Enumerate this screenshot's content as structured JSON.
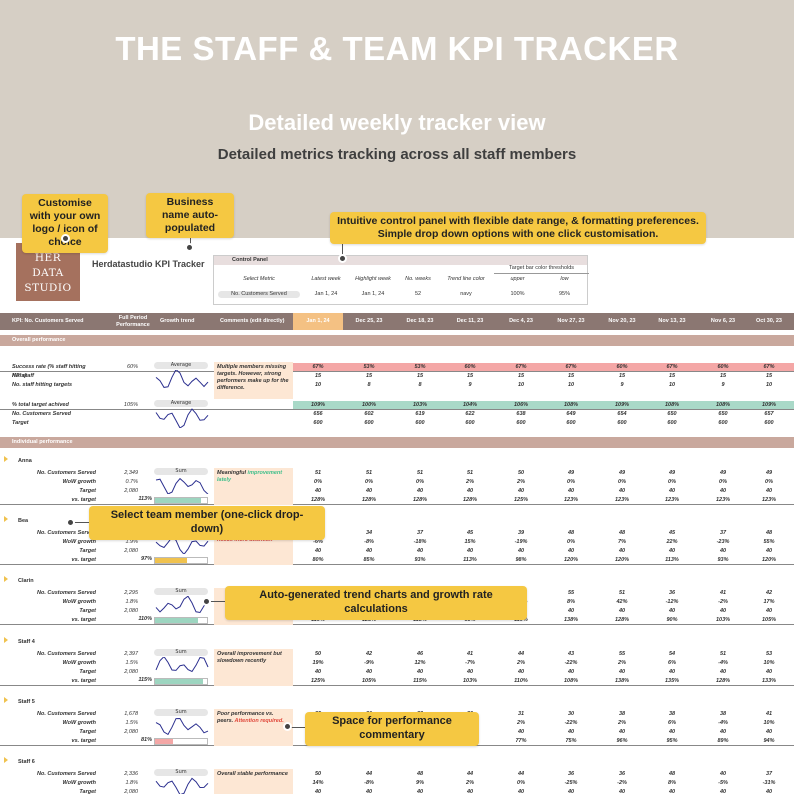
{
  "hero": {
    "title": "THE STAFF & TEAM KPI TRACKER",
    "subtitle": "Detailed weekly tracker view",
    "subtitle2": "Detailed metrics tracking across all staff members"
  },
  "callouts": {
    "logo": "Customise with your own logo / icon of choice",
    "business": "Business name auto-populated",
    "control": "Intuitive control panel with flexible date range, & formatting preferences. Simple drop down options with one click customisation.",
    "member": "Select team member (one-click drop-down)",
    "trend": "Auto-generated trend charts and growth rate calculations",
    "commentary": "Space for performance commentary"
  },
  "logo": {
    "line1": "HER",
    "line2": "DATA",
    "line3": "STUDIO"
  },
  "business_name": "Herdatastudio KPI Tracker",
  "control_panel": {
    "title": "Control Panel",
    "group_header": "Target bar color thresholds",
    "headers": [
      "Select Metric",
      "Latest week",
      "Highlight week",
      "No. weeks",
      "Trend line color",
      "upper",
      "low"
    ],
    "values": [
      "No. Customers Served",
      "Jan 1, 24",
      "Jan 1, 24",
      "52",
      "navy",
      "100%",
      "95%"
    ]
  },
  "header": {
    "kpi": "KPI: No. Customers Served",
    "full_period": "Full Period Performance",
    "growth": "Growth trend",
    "comments": "Comments (edit directly)",
    "dates": [
      "Jan 1, 24",
      "Dec 25, 23",
      "Dec 18, 23",
      "Dec 11, 23",
      "Dec 4, 23",
      "Nov 27, 23",
      "Nov 20, 23",
      "Nov 13, 23",
      "Nov 6, 23",
      "Oct 30, 23"
    ]
  },
  "overall": {
    "band": "Overall performance",
    "rows": [
      {
        "label": "Success rate (% staff hitting KPIs)",
        "full": "60%",
        "cells": [
          "67%",
          "53%",
          "53%",
          "60%",
          "67%",
          "67%",
          "60%",
          "67%",
          "60%",
          "67%"
        ]
      },
      {
        "label": "No. staff",
        "full": "",
        "cells": [
          "15",
          "15",
          "15",
          "15",
          "15",
          "15",
          "15",
          "15",
          "15",
          "15"
        ]
      },
      {
        "label": "No. staff hitting targets",
        "full": "",
        "cells": [
          "10",
          "8",
          "8",
          "9",
          "10",
          "10",
          "9",
          "10",
          "9",
          "10"
        ]
      },
      {
        "label": "% total target achived",
        "full": "105%",
        "cells": [
          "109%",
          "100%",
          "103%",
          "104%",
          "106%",
          "108%",
          "109%",
          "108%",
          "108%",
          "109%"
        ]
      },
      {
        "label": "No. Customers Served",
        "full": "",
        "cells": [
          "656",
          "602",
          "619",
          "622",
          "638",
          "649",
          "654",
          "650",
          "650",
          "657"
        ]
      },
      {
        "label": "Target",
        "full": "",
        "cells": [
          "600",
          "600",
          "600",
          "600",
          "600",
          "600",
          "600",
          "600",
          "600",
          "600"
        ]
      }
    ],
    "trend_label_1": "Average",
    "trend_label_2": "Average",
    "comment": "Multiple members missing targets. However, strong performers make up for the difference."
  },
  "individual": {
    "band": "Individual performance",
    "metric_labels": [
      "No. Customers Served",
      "WoW growth",
      "Target",
      "vs. target"
    ],
    "trend_label": "Sum",
    "members": [
      {
        "name": "Anna",
        "full": [
          "2,349",
          "0.7%",
          "2,080",
          "113%"
        ],
        "vs_color": "#9dd5c0",
        "comment_a": "Meaningful",
        "comment_b": " improvement lately",
        "comment_b_color": "g",
        "rows": [
          [
            "51",
            "51",
            "51",
            "51",
            "50",
            "49",
            "49",
            "49",
            "49",
            "49"
          ],
          [
            "0%",
            "0%",
            "0%",
            "2%",
            "2%",
            "0%",
            "0%",
            "0%",
            "0%",
            "0%"
          ],
          [
            "40",
            "40",
            "40",
            "40",
            "40",
            "40",
            "40",
            "40",
            "40",
            "40"
          ],
          [
            "128%",
            "128%",
            "128%",
            "128%",
            "125%",
            "123%",
            "123%",
            "123%",
            "123%",
            "123%"
          ]
        ]
      },
      {
        "name": "Bea",
        "full": [
          "2,012",
          "1.9%",
          "2,080",
          "97%"
        ],
        "vs_color": "#f0c24e",
        "comment_a": "Improvement but",
        "comment_b": " still needs more attention",
        "comment_b_color": "r",
        "rows": [
          [
            "32",
            "34",
            "37",
            "45",
            "39",
            "48",
            "48",
            "45",
            "37",
            "48"
          ],
          [
            "-6%",
            "-8%",
            "-18%",
            "15%",
            "-19%",
            "0%",
            "7%",
            "22%",
            "-23%",
            "55%"
          ],
          [
            "40",
            "40",
            "40",
            "40",
            "40",
            "40",
            "40",
            "40",
            "40",
            "40"
          ],
          [
            "80%",
            "85%",
            "93%",
            "113%",
            "98%",
            "120%",
            "120%",
            "113%",
            "93%",
            "120%"
          ]
        ]
      },
      {
        "name": "Clarin",
        "full": [
          "2,295",
          "1.8%",
          "2,080",
          "110%"
        ],
        "vs_color": "#9dd5c0",
        "comment_a": "",
        "comment_b": "",
        "comment_b_color": "g",
        "rows": [
          [
            "44",
            "49",
            "47",
            "39",
            "44",
            "55",
            "51",
            "36",
            "41",
            "42"
          ],
          [
            "-10%",
            "4%",
            "21%",
            "-11%",
            "-20%",
            "8%",
            "42%",
            "-12%",
            "-2%",
            "17%"
          ],
          [
            "40",
            "40",
            "40",
            "40",
            "40",
            "40",
            "40",
            "40",
            "40",
            "40"
          ],
          [
            "110%",
            "123%",
            "118%",
            "98%",
            "110%",
            "138%",
            "128%",
            "90%",
            "103%",
            "105%"
          ]
        ]
      },
      {
        "name": "Staff 4",
        "full": [
          "2,397",
          "1.5%",
          "2,080",
          "115%"
        ],
        "vs_color": "#9dd5c0",
        "comment_a": "Overall improvement but slowdown recently",
        "comment_b": "",
        "comment_b_color": "g",
        "rows": [
          [
            "50",
            "42",
            "46",
            "41",
            "44",
            "43",
            "55",
            "54",
            "51",
            "53"
          ],
          [
            "19%",
            "-9%",
            "12%",
            "-7%",
            "2%",
            "-22%",
            "2%",
            "6%",
            "-4%",
            "10%"
          ],
          [
            "40",
            "40",
            "40",
            "40",
            "40",
            "40",
            "40",
            "40",
            "40",
            "40"
          ],
          [
            "125%",
            "105%",
            "115%",
            "103%",
            "110%",
            "108%",
            "138%",
            "135%",
            "128%",
            "133%"
          ]
        ]
      },
      {
        "name": "Staff 5",
        "full": [
          "1,678",
          "1.5%",
          "2,080",
          "81%"
        ],
        "vs_color": "#f4a7a6",
        "comment_a": "Poor performance vs. peers.",
        "comment_b": " Attention required.",
        "comment_b_color": "r",
        "rows": [
          [
            "35",
            "30",
            "32",
            "29",
            "31",
            "30",
            "38",
            "38",
            "38",
            "41"
          ],
          [
            "19%",
            "-9%",
            "12%",
            "-7%",
            "2%",
            "-22%",
            "2%",
            "6%",
            "-4%",
            "10%"
          ],
          [
            "40",
            "40",
            "40",
            "40",
            "40",
            "40",
            "40",
            "40",
            "40",
            "40"
          ],
          [
            "88%",
            "74%",
            "81%",
            "72%",
            "77%",
            "75%",
            "96%",
            "95%",
            "89%",
            "94%"
          ]
        ]
      },
      {
        "name": "Staff 6",
        "full": [
          "2,336",
          "1.8%",
          "2,080",
          "112%"
        ],
        "vs_color": "#9dd5c0",
        "comment_a": "Overall stable performance",
        "comment_b": "",
        "comment_b_color": "g",
        "rows": [
          [
            "50",
            "44",
            "48",
            "44",
            "44",
            "36",
            "36",
            "48",
            "40",
            "37"
          ],
          [
            "14%",
            "-8%",
            "9%",
            "2%",
            "0%",
            "-25%",
            "-2%",
            "8%",
            "-5%",
            "-31%"
          ],
          [
            "40",
            "40",
            "40",
            "40",
            "40",
            "40",
            "40",
            "40",
            "40",
            "40"
          ],
          [
            "125%",
            "110%",
            "120%",
            "110%",
            "110%",
            "90%",
            "90%",
            "120%",
            "100%",
            "93%"
          ]
        ]
      }
    ]
  },
  "colors": {
    "header": "#8b7772",
    "band": "#c9a89d",
    "highlight": "#f4c183",
    "accent": "#f5c842",
    "logo": "#a5715e",
    "trend": "#2b2f8f"
  }
}
